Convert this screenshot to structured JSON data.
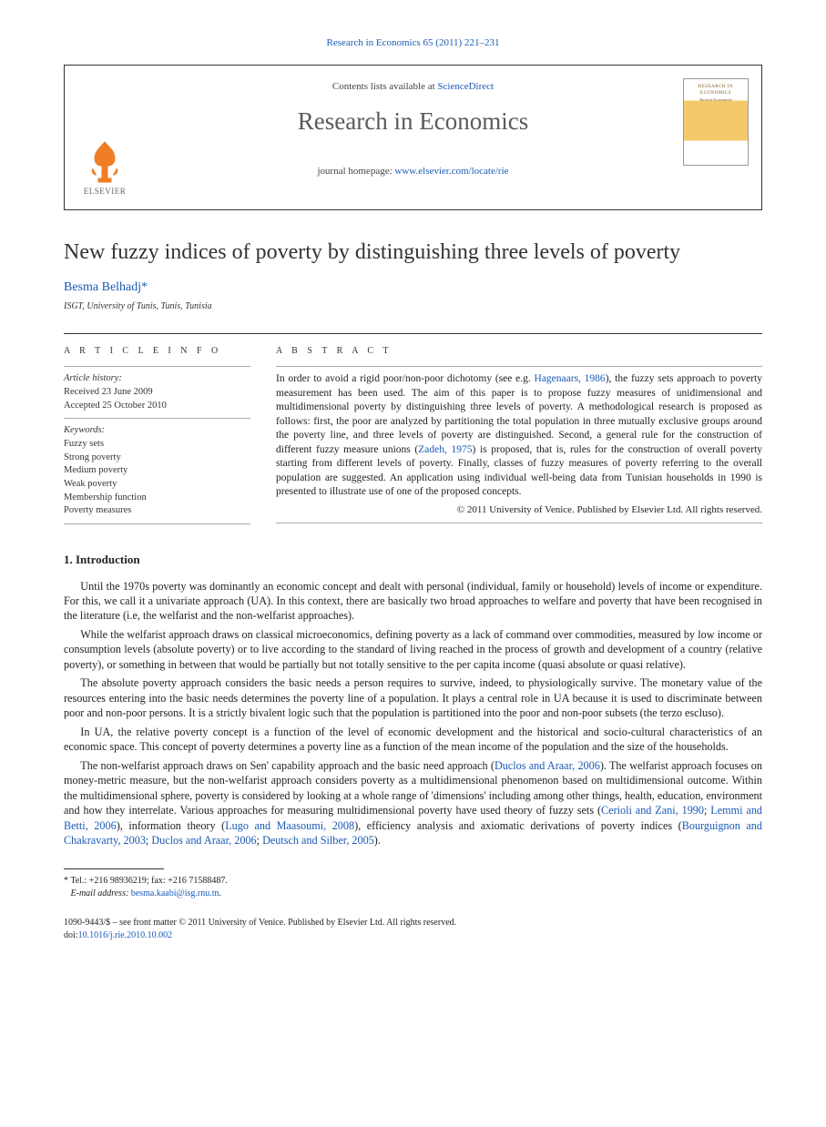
{
  "journal_line": "Research in Economics 65 (2011) 221–231",
  "top_box": {
    "contents_prefix": "Contents lists available at ",
    "sciencedirect": "ScienceDirect",
    "journal_name": "Research in Economics",
    "homepage_prefix": "journal homepage: ",
    "homepage_url": "www.elsevier.com/locate/rie",
    "logo_text": "ELSEVIER",
    "cover_line1": "RESEARCH IN ECONOMICS",
    "cover_line2": "Ricerche Economiche"
  },
  "title": "New fuzzy indices of poverty by distinguishing three levels of poverty",
  "author": "Besma Belhadj",
  "author_mark": "*",
  "affiliation": "ISGT, University of Tunis, Tunis, Tunisia",
  "info_heading": "A R T I C L E   I N F O",
  "abstract_heading": "A B S T R A C T",
  "history_label": "Article history:",
  "history": {
    "received": "Received 23 June 2009",
    "accepted": "Accepted 25 October 2010"
  },
  "keywords_label": "Keywords:",
  "keywords": [
    "Fuzzy sets",
    "Strong poverty",
    "Medium poverty",
    "Weak poverty",
    "Membership function",
    "Poverty measures"
  ],
  "abstract_parts": [
    "In order to avoid a rigid poor/non-poor dichotomy (see e.g. ",
    "Hagenaars, 1986",
    "), the fuzzy sets approach to poverty measurement has been used. The aim of this paper is to propose fuzzy measures of unidimensional and multidimensional poverty by distinguishing three levels of poverty. A methodological research is proposed as follows: first, the poor are analyzed by partitioning the total population in three mutually exclusive groups around the poverty line, and three levels of poverty are distinguished. Second, a general rule for the construction of different fuzzy measure unions (",
    "Zadeh, 1975",
    ") is proposed, that is, rules for the construction of overall poverty starting from different levels of poverty. Finally, classes of fuzzy measures of poverty referring to the overall population are suggested. An application using individual well-being data from Tunisian households in 1990 is presented to illustrate use of one of the proposed concepts."
  ],
  "copyright": "© 2011 University of Venice. Published by Elsevier Ltd. All rights reserved.",
  "section1_title": "1. Introduction",
  "paragraphs": [
    {
      "chunks": [
        {
          "t": "Until the 1970s poverty was dominantly an economic concept and dealt with personal (individual, family or household) levels of income or expenditure. For this, we call it a univariate approach (UA). In this context, there are basically two broad approaches to welfare and poverty that have been recognised in the literature (i.e, the welfarist and the non-welfarist approaches)."
        }
      ]
    },
    {
      "chunks": [
        {
          "t": "While the welfarist approach draws on classical microeconomics, defining poverty as a lack of command over commodities, measured by low income or consumption levels (absolute poverty) or to live according to the standard of living reached in the process of growth and development of a country (relative poverty), or something in between that would be partially but not totally sensitive to the per capita income (quasi absolute or quasi relative)."
        }
      ]
    },
    {
      "chunks": [
        {
          "t": "The absolute poverty approach considers the basic needs a person requires to survive, indeed, to physiologically survive. The monetary value of the resources entering into the basic needs determines the poverty line of a population. It plays a central role in UA because it is used to discriminate between poor and non-poor persons. It is a strictly bivalent logic such that the population is partitioned into the poor and non-poor subsets (the terzo escluso)."
        }
      ]
    },
    {
      "chunks": [
        {
          "t": "In UA, the relative poverty concept is a function of the level of economic development and the historical and socio-cultural characteristics of an economic space. This concept of poverty determines a poverty line as a function of the mean income of the population and the size of the households."
        }
      ]
    },
    {
      "chunks": [
        {
          "t": "The non-welfarist approach draws on Sen' capability approach and the basic need approach ("
        },
        {
          "t": "Duclos and Araar, 2006",
          "cite": true
        },
        {
          "t": "). The welfarist approach focuses on money-metric measure, but the non-welfarist approach considers poverty as a multidimensional phenomenon based on multidimensional outcome. Within the multidimensional sphere, poverty is considered by looking at a whole range of 'dimensions' including among other things, health, education, environment and how they interrelate. Various approaches for measuring multidimensional poverty have used theory of fuzzy sets ("
        },
        {
          "t": "Cerioli and Zani, 1990",
          "cite": true
        },
        {
          "t": "; "
        },
        {
          "t": "Lemmi and Betti, 2006",
          "cite": true
        },
        {
          "t": "), information theory ("
        },
        {
          "t": "Lugo and Maasoumi, 2008",
          "cite": true
        },
        {
          "t": "), efficiency analysis and axiomatic derivations of poverty indices ("
        },
        {
          "t": "Bourguignon and Chakravarty, 2003",
          "cite": true
        },
        {
          "t": "; "
        },
        {
          "t": "Duclos and Araar, 2006",
          "cite": true
        },
        {
          "t": "; "
        },
        {
          "t": "Deutsch and Silber, 2005",
          "cite": true
        },
        {
          "t": ")."
        }
      ]
    }
  ],
  "footnote": {
    "mark": "*",
    "contact": "Tel.: +216 98936219; fax: +216 71588487.",
    "email_label": "E-mail address:",
    "email": "besma.kaabi@isg.rnu.tn",
    "email_tail": "."
  },
  "bottom": {
    "line1": "1090-9443/$ – see front matter © 2011 University of Venice. Published by Elsevier Ltd. All rights reserved.",
    "doi_prefix": "doi:",
    "doi": "10.1016/j.rie.2010.10.002"
  },
  "colors": {
    "link": "#1a5ab5",
    "logo_orange": "#f07e26",
    "text": "#222222",
    "rule": "#333333"
  }
}
